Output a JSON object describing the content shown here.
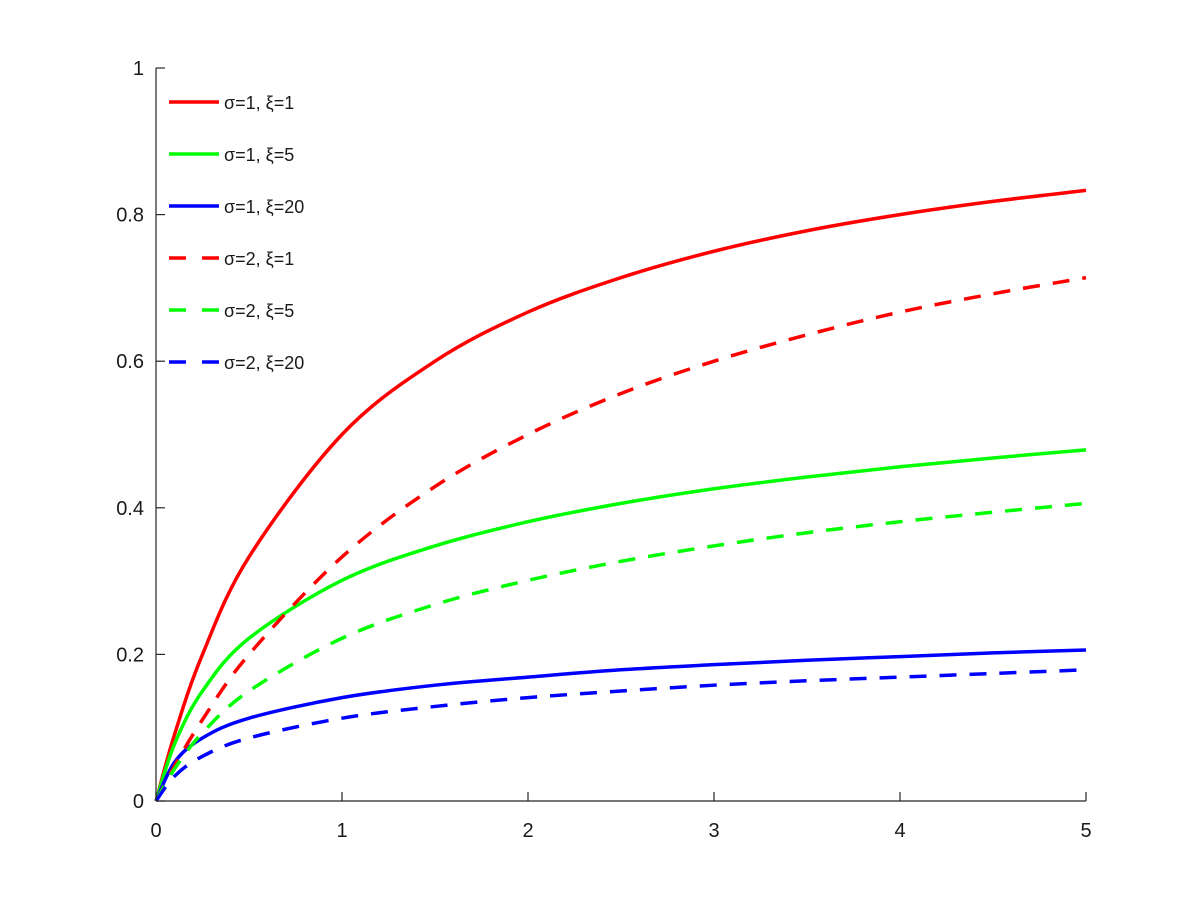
{
  "chart_data": {
    "type": "line",
    "title": "",
    "xlabel": "",
    "ylabel": "",
    "xlim": [
      0,
      5
    ],
    "ylim": [
      0,
      1
    ],
    "grid": false,
    "legend_position": "upper-left (inside)",
    "x_ticks": [
      "0",
      "1",
      "2",
      "3",
      "4",
      "5"
    ],
    "y_ticks": [
      "0",
      "0.2",
      "0.4",
      "0.6",
      "0.8",
      "1"
    ],
    "x": [
      0,
      0.1,
      0.25,
      0.5,
      1,
      1.5,
      2,
      2.5,
      3,
      3.5,
      4,
      4.5,
      5
    ],
    "series": [
      {
        "name": "σ=1, ξ=1",
        "color": "#ff0000",
        "style": "solid",
        "values": [
          0,
          0.091,
          0.2,
          0.333,
          0.5,
          0.6,
          0.667,
          0.714,
          0.75,
          0.778,
          0.8,
          0.818,
          0.833
        ]
      },
      {
        "name": "σ=1, ξ=5",
        "color": "#00ff00",
        "style": "solid",
        "values": [
          0,
          0.078,
          0.15,
          0.222,
          0.301,
          0.348,
          0.381,
          0.406,
          0.426,
          0.442,
          0.456,
          0.468,
          0.479
        ]
      },
      {
        "name": "σ=1, ξ=20",
        "color": "#0000ff",
        "style": "solid",
        "values": [
          0,
          0.053,
          0.086,
          0.113,
          0.141,
          0.158,
          0.169,
          0.179,
          0.186,
          0.192,
          0.197,
          0.202,
          0.206
        ]
      },
      {
        "name": "σ=2, ξ=1",
        "color": "#ff0000",
        "style": "dashed",
        "values": [
          0,
          0.048,
          0.111,
          0.2,
          0.333,
          0.429,
          0.5,
          0.556,
          0.6,
          0.636,
          0.667,
          0.692,
          0.714
        ]
      },
      {
        "name": "σ=2, ξ=5",
        "color": "#00ff00",
        "style": "dashed",
        "values": [
          0,
          0.044,
          0.093,
          0.15,
          0.222,
          0.268,
          0.301,
          0.327,
          0.348,
          0.366,
          0.381,
          0.394,
          0.406
        ]
      },
      {
        "name": "σ=2, ξ=20",
        "color": "#0000ff",
        "style": "dashed",
        "values": [
          0,
          0.034,
          0.061,
          0.086,
          0.113,
          0.129,
          0.141,
          0.15,
          0.158,
          0.164,
          0.169,
          0.174,
          0.179
        ]
      }
    ]
  },
  "legend": {
    "items": [
      {
        "label": "σ=1, ξ=1",
        "color": "#ff0000",
        "style": "solid"
      },
      {
        "label": "σ=1, ξ=5",
        "color": "#00ff00",
        "style": "solid"
      },
      {
        "label": "σ=1, ξ=20",
        "color": "#0000ff",
        "style": "solid"
      },
      {
        "label": "σ=2, ξ=1",
        "color": "#ff0000",
        "style": "dashed"
      },
      {
        "label": "σ=2, ξ=5",
        "color": "#00ff00",
        "style": "dashed"
      },
      {
        "label": "σ=2, ξ=20",
        "color": "#0000ff",
        "style": "dashed"
      }
    ]
  },
  "colors": {
    "axis": "#262626",
    "background": "#ffffff"
  }
}
